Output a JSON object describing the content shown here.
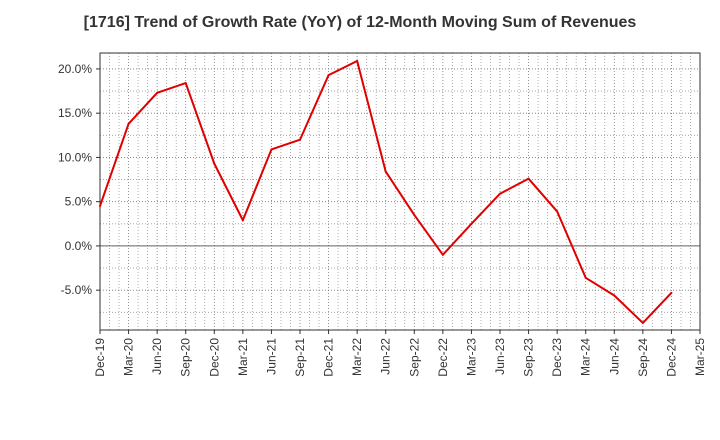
{
  "chart_data": {
    "type": "line",
    "title": "[1716]  Trend of Growth Rate (YoY) of 12-Month Moving Sum of Revenues",
    "xlabel": "",
    "ylabel": "",
    "x_tick_labels": [
      "Dec-19",
      "Mar-20",
      "Jun-20",
      "Sep-20",
      "Dec-20",
      "Mar-21",
      "Jun-21",
      "Sep-21",
      "Dec-21",
      "Mar-22",
      "Jun-22",
      "Sep-22",
      "Dec-22",
      "Mar-23",
      "Jun-23",
      "Sep-23",
      "Dec-23",
      "Mar-24",
      "Jun-24",
      "Sep-24",
      "Dec-24",
      "Mar-25"
    ],
    "y_ticks": [
      20.0,
      15.0,
      10.0,
      5.0,
      0.0,
      -5.0
    ],
    "y_tick_labels": [
      "20.0%",
      "15.0%",
      "10.0%",
      "5.0%",
      "0.0%",
      "-5.0%"
    ],
    "ylim": [
      -9.5,
      21.8
    ],
    "grid": true,
    "series": [
      {
        "color": "#e00000",
        "x": [
          "Dec-19",
          "Mar-20",
          "Jun-20",
          "Sep-20",
          "Dec-20",
          "Mar-21",
          "Jun-21",
          "Sep-21",
          "Dec-21",
          "Mar-22",
          "Jun-22",
          "Sep-22",
          "Dec-22",
          "Mar-23",
          "Jun-23",
          "Sep-23",
          "Dec-23",
          "Mar-24",
          "Jun-24",
          "Sep-24",
          "Dec-24"
        ],
        "values": [
          4.5,
          13.8,
          17.3,
          18.4,
          9.3,
          2.9,
          10.9,
          12.0,
          19.3,
          20.9,
          8.4,
          3.5,
          -1.0,
          2.5,
          5.9,
          7.6,
          3.9,
          -3.6,
          -5.6,
          -8.7,
          -5.3
        ]
      }
    ]
  }
}
